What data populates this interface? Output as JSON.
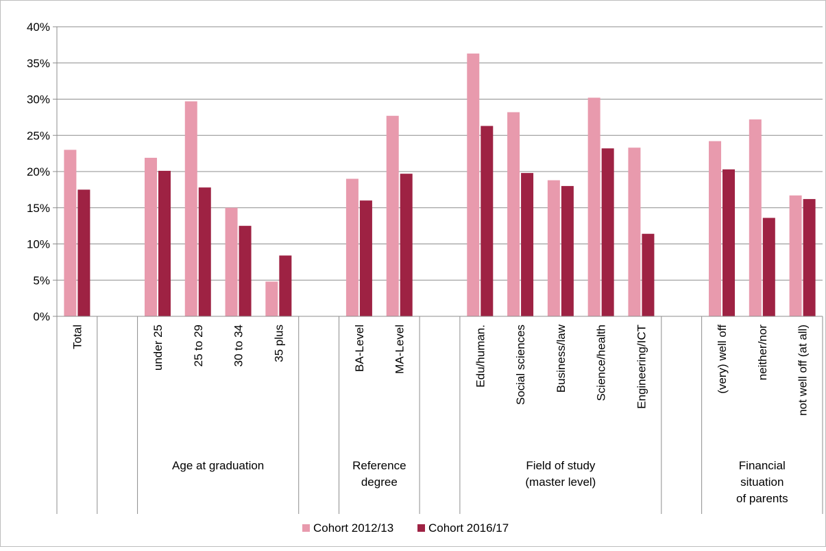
{
  "chart_data": {
    "type": "bar",
    "title": "",
    "xlabel": "",
    "ylabel": "",
    "ylim": [
      0,
      40
    ],
    "yticks": [
      "0%",
      "5%",
      "10%",
      "15%",
      "20%",
      "25%",
      "30%",
      "35%",
      "40%"
    ],
    "grid": true,
    "legend_position": "bottom",
    "categories": [
      "Total",
      "",
      "under 25",
      "25 to 29",
      "30 to 34",
      "35 plus",
      "",
      "BA-Level",
      "MA-Level",
      "",
      "Edu/human.",
      "Social sciences",
      "Business/law",
      "Science/health",
      "Engineering/ICT",
      "",
      "(very) well off",
      "neither/nor",
      "not well off (at all)"
    ],
    "groups": [
      {
        "label": [
          "Age at graduation"
        ]
      },
      {
        "label": [
          "Reference",
          "degree"
        ]
      },
      {
        "label": [
          "Field of study",
          "(master level)"
        ]
      },
      {
        "label": [
          "Financial",
          "situation",
          "of parents"
        ]
      }
    ],
    "series": [
      {
        "name": "Cohort 2012/13",
        "color": "#e89aad",
        "values": [
          23.0,
          null,
          21.9,
          29.7,
          15.0,
          4.8,
          null,
          19.0,
          27.7,
          null,
          36.3,
          28.2,
          18.8,
          30.2,
          23.3,
          null,
          24.2,
          27.2,
          16.7
        ]
      },
      {
        "name": "Cohort 2016/17",
        "color": "#9e2243",
        "values": [
          17.5,
          null,
          20.1,
          17.8,
          12.5,
          8.4,
          null,
          16.0,
          19.7,
          null,
          26.3,
          19.8,
          18.0,
          23.2,
          11.4,
          null,
          20.3,
          13.6,
          16.2
        ]
      }
    ]
  }
}
